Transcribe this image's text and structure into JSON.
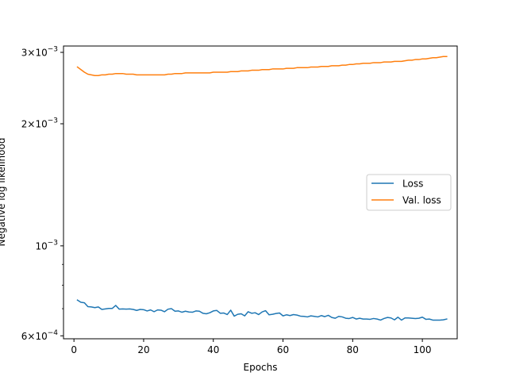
{
  "chart_data": {
    "type": "line",
    "title": "",
    "xlabel": "Epochs",
    "ylabel": "Negative log likelihood",
    "yscale": "log",
    "xlim": [
      -3,
      110
    ],
    "ylim": [
      0.00059,
      0.00311
    ],
    "grid": false,
    "legend_placement": "center-right",
    "x_ticks": [
      0,
      20,
      40,
      60,
      80,
      100
    ],
    "x_tick_labels": [
      "0",
      "20",
      "40",
      "60",
      "80",
      "100"
    ],
    "y_ticks": [
      0.003,
      0.002,
      0.001,
      0.0006
    ],
    "y_tick_labels": [
      {
        "mantissa": "3",
        "base": "10",
        "exp": "−3"
      },
      {
        "mantissa": "2",
        "base": "10",
        "exp": "−3"
      },
      {
        "mantissa": "",
        "base": "10",
        "exp": "−3"
      },
      {
        "mantissa": "6",
        "base": "10",
        "exp": "−4"
      }
    ],
    "y_minor_ticks": [
      0.0007,
      0.0008,
      0.0009
    ],
    "x": [
      1,
      2,
      3,
      4,
      5,
      6,
      7,
      8,
      9,
      10,
      11,
      12,
      13,
      14,
      15,
      16,
      17,
      18,
      19,
      20,
      21,
      22,
      23,
      24,
      25,
      26,
      27,
      28,
      29,
      30,
      31,
      32,
      33,
      34,
      35,
      36,
      37,
      38,
      39,
      40,
      41,
      42,
      43,
      44,
      45,
      46,
      47,
      48,
      49,
      50,
      51,
      52,
      53,
      54,
      55,
      56,
      57,
      58,
      59,
      60,
      61,
      62,
      63,
      64,
      65,
      66,
      67,
      68,
      69,
      70,
      71,
      72,
      73,
      74,
      75,
      76,
      77,
      78,
      79,
      80,
      81,
      82,
      83,
      84,
      85,
      86,
      87,
      88,
      89,
      90,
      91,
      92,
      93,
      94,
      95,
      96,
      97,
      98,
      99,
      100,
      101,
      102,
      103,
      104,
      105,
      106,
      107
    ],
    "series": [
      {
        "name": "Loss",
        "color": "#1f77b4",
        "values": [
          0.000735,
          0.000726,
          0.000724,
          0.000708,
          0.000707,
          0.000704,
          0.000707,
          0.000697,
          0.000699,
          0.000701,
          0.000701,
          0.000713,
          0.000698,
          0.000699,
          0.000698,
          0.000699,
          0.000697,
          0.000693,
          0.000697,
          0.000696,
          0.000691,
          0.000695,
          0.000688,
          0.000695,
          0.000694,
          0.000688,
          0.000698,
          0.0007,
          0.00069,
          0.000691,
          0.000686,
          0.00069,
          0.000687,
          0.000686,
          0.000691,
          0.00069,
          0.000682,
          0.00068,
          0.000684,
          0.000691,
          0.000693,
          0.000682,
          0.000683,
          0.000677,
          0.000694,
          0.000671,
          0.000678,
          0.00068,
          0.000672,
          0.000688,
          0.000682,
          0.000684,
          0.000677,
          0.000687,
          0.000692,
          0.000676,
          0.000678,
          0.000681,
          0.000683,
          0.000672,
          0.000676,
          0.000673,
          0.000677,
          0.000675,
          0.000671,
          0.00067,
          0.000668,
          0.000672,
          0.00067,
          0.000668,
          0.000673,
          0.000669,
          0.000674,
          0.000666,
          0.000663,
          0.00067,
          0.000668,
          0.000663,
          0.000662,
          0.000666,
          0.00066,
          0.000663,
          0.00066,
          0.00066,
          0.000659,
          0.000662,
          0.00066,
          0.000656,
          0.000662,
          0.000666,
          0.000664,
          0.000657,
          0.000667,
          0.000656,
          0.000664,
          0.000664,
          0.000663,
          0.000662,
          0.000663,
          0.000667,
          0.000659,
          0.00066,
          0.000656,
          0.000656,
          0.000656,
          0.000657,
          0.00066
        ]
      },
      {
        "name": "Val. loss",
        "color": "#ff7f0e",
        "values": [
          0.00276,
          0.00272,
          0.00268,
          0.00265,
          0.00264,
          0.00263,
          0.00263,
          0.00264,
          0.00264,
          0.00265,
          0.00265,
          0.00266,
          0.00266,
          0.00266,
          0.00265,
          0.00265,
          0.00265,
          0.00264,
          0.00264,
          0.00264,
          0.00264,
          0.00264,
          0.00264,
          0.00264,
          0.00264,
          0.00264,
          0.00265,
          0.00265,
          0.00266,
          0.00266,
          0.00266,
          0.00267,
          0.00267,
          0.00267,
          0.00267,
          0.00267,
          0.00267,
          0.00267,
          0.00267,
          0.00268,
          0.00268,
          0.00268,
          0.00268,
          0.00268,
          0.00269,
          0.00269,
          0.00269,
          0.0027,
          0.0027,
          0.0027,
          0.00271,
          0.00271,
          0.00271,
          0.00272,
          0.00272,
          0.00272,
          0.00273,
          0.00273,
          0.00273,
          0.00273,
          0.00274,
          0.00274,
          0.00274,
          0.00275,
          0.00275,
          0.00275,
          0.00275,
          0.00276,
          0.00276,
          0.00276,
          0.00277,
          0.00277,
          0.00277,
          0.00278,
          0.00278,
          0.00278,
          0.00279,
          0.00279,
          0.0028,
          0.0028,
          0.00281,
          0.00281,
          0.00282,
          0.00282,
          0.00282,
          0.00283,
          0.00283,
          0.00283,
          0.00284,
          0.00284,
          0.00284,
          0.00285,
          0.00285,
          0.00285,
          0.00286,
          0.00287,
          0.00287,
          0.00288,
          0.00288,
          0.00289,
          0.00289,
          0.0029,
          0.00291,
          0.00291,
          0.00292,
          0.00293,
          0.00293
        ]
      }
    ]
  }
}
